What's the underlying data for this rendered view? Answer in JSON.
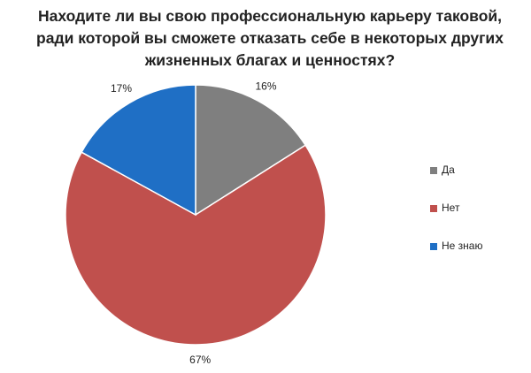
{
  "chart_data": {
    "type": "pie",
    "title": "Находите ли вы свою профессиональную карьеру таковой, ради которой вы сможете отказать себе в некоторых других жизненных благах и ценностях?",
    "categories": [
      "Да",
      "Нет",
      "Не знаю"
    ],
    "values": [
      16,
      67,
      17
    ],
    "value_labels": [
      "16%",
      "67%",
      "17%"
    ],
    "colors": [
      "#7f7f7f",
      "#c0504d",
      "#1f6fc5"
    ],
    "legend": "right"
  }
}
